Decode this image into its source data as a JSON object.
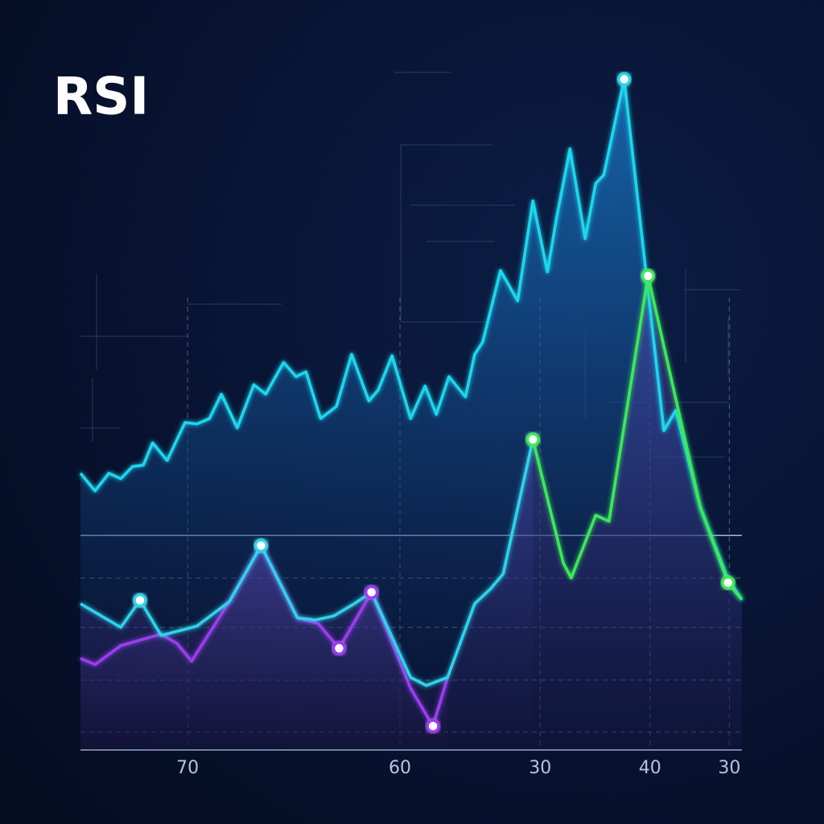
{
  "chart_data": {
    "type": "line",
    "title": "RSI",
    "xlim": [
      0,
      100
    ],
    "ylim": [
      0,
      100
    ],
    "xticks": [
      {
        "value": 16.2,
        "label": "70"
      },
      {
        "value": 48.3,
        "label": "60"
      },
      {
        "value": 69.5,
        "label": "30"
      },
      {
        "value": 86.1,
        "label": "40"
      },
      {
        "value": 98.1,
        "label": "30"
      }
    ],
    "threshold_line": 31.5,
    "dashed_lines": [
      25.2,
      17.9,
      10.1,
      2.4
    ],
    "series": [
      {
        "color": "#1fd6ee",
        "fill": "blue",
        "x": [
          0,
          2.2,
          4.3,
          6.1,
          7.9,
          9.5,
          10.9,
          13.1,
          15.8,
          17.6,
          19.5,
          21.3,
          23.7,
          26.2,
          28.0,
          30.7,
          32.6,
          34.1,
          36.3,
          38.7,
          41.0,
          43.6,
          45.0,
          47.1,
          49.9,
          52.1,
          53.8,
          55.7,
          58.2,
          59.6,
          60.8,
          63.5,
          66.1,
          68.4,
          70.6,
          72.0,
          74.0,
          76.3,
          77.9,
          79.1,
          82.2,
          88.2,
          90.0,
          93.7,
          97.9,
          100
        ],
        "values": [
          40.7,
          38.1,
          40.7,
          39.9,
          41.7,
          41.9,
          45.2,
          42.6,
          48.2,
          48.0,
          48.8,
          52.4,
          47.4,
          53.8,
          52.4,
          57.1,
          55.0,
          55.7,
          48.8,
          50.6,
          58.3,
          51.4,
          53.0,
          58.1,
          48.8,
          53.6,
          49.4,
          55.0,
          52.0,
          58.3,
          60.1,
          70.7,
          66.2,
          81.0,
          70.5,
          78.6,
          88.7,
          75.4,
          83.6,
          84.8,
          99.0,
          47.0,
          50.0,
          35.7,
          25.0,
          22.0
        ],
        "marker_indices": [
          40
        ]
      },
      {
        "color": "#9b3cf0",
        "fill": "purple",
        "x": [
          0,
          2.2,
          6.1,
          12.2,
          14.6,
          16.8,
          22.5,
          27.3,
          32.8,
          35.9,
          39.1,
          44.0,
          49.9,
          53.3,
          55.5
        ],
        "values": [
          13.3,
          12.4,
          15.2,
          16.9,
          15.5,
          12.9,
          21.7,
          30.0,
          19.3,
          18.5,
          14.8,
          23.1,
          8.9,
          3.3,
          10.5
        ],
        "marker_indices": [
          10,
          11,
          13
        ]
      },
      {
        "color": "#2fd3ea",
        "fill": "purple",
        "x": [
          0,
          6.1,
          9.0,
          12.2,
          17.6,
          22.5,
          27.3,
          32.8,
          35.5,
          38.3,
          41.4,
          44.0,
          49.9,
          52.3,
          55.5,
          59.6,
          62.0,
          63.9,
          68.4
        ],
        "values": [
          21.4,
          17.9,
          21.9,
          16.7,
          18.1,
          21.7,
          30.0,
          19.3,
          19.0,
          19.6,
          21.4,
          23.1,
          10.5,
          9.3,
          10.5,
          21.4,
          23.6,
          25.8,
          45.7
        ],
        "marker_indices": [
          2,
          6
        ]
      },
      {
        "color": "#3ee85a",
        "fill": "purple",
        "x": [
          68.4,
          73.0,
          74.2,
          77.9,
          79.9,
          85.8,
          93.7,
          97.9,
          100
        ],
        "values": [
          45.7,
          27.4,
          25.2,
          34.5,
          33.6,
          69.9,
          35.7,
          24.5,
          22.0
        ],
        "marker_indices": [
          0,
          5,
          7
        ]
      }
    ]
  }
}
